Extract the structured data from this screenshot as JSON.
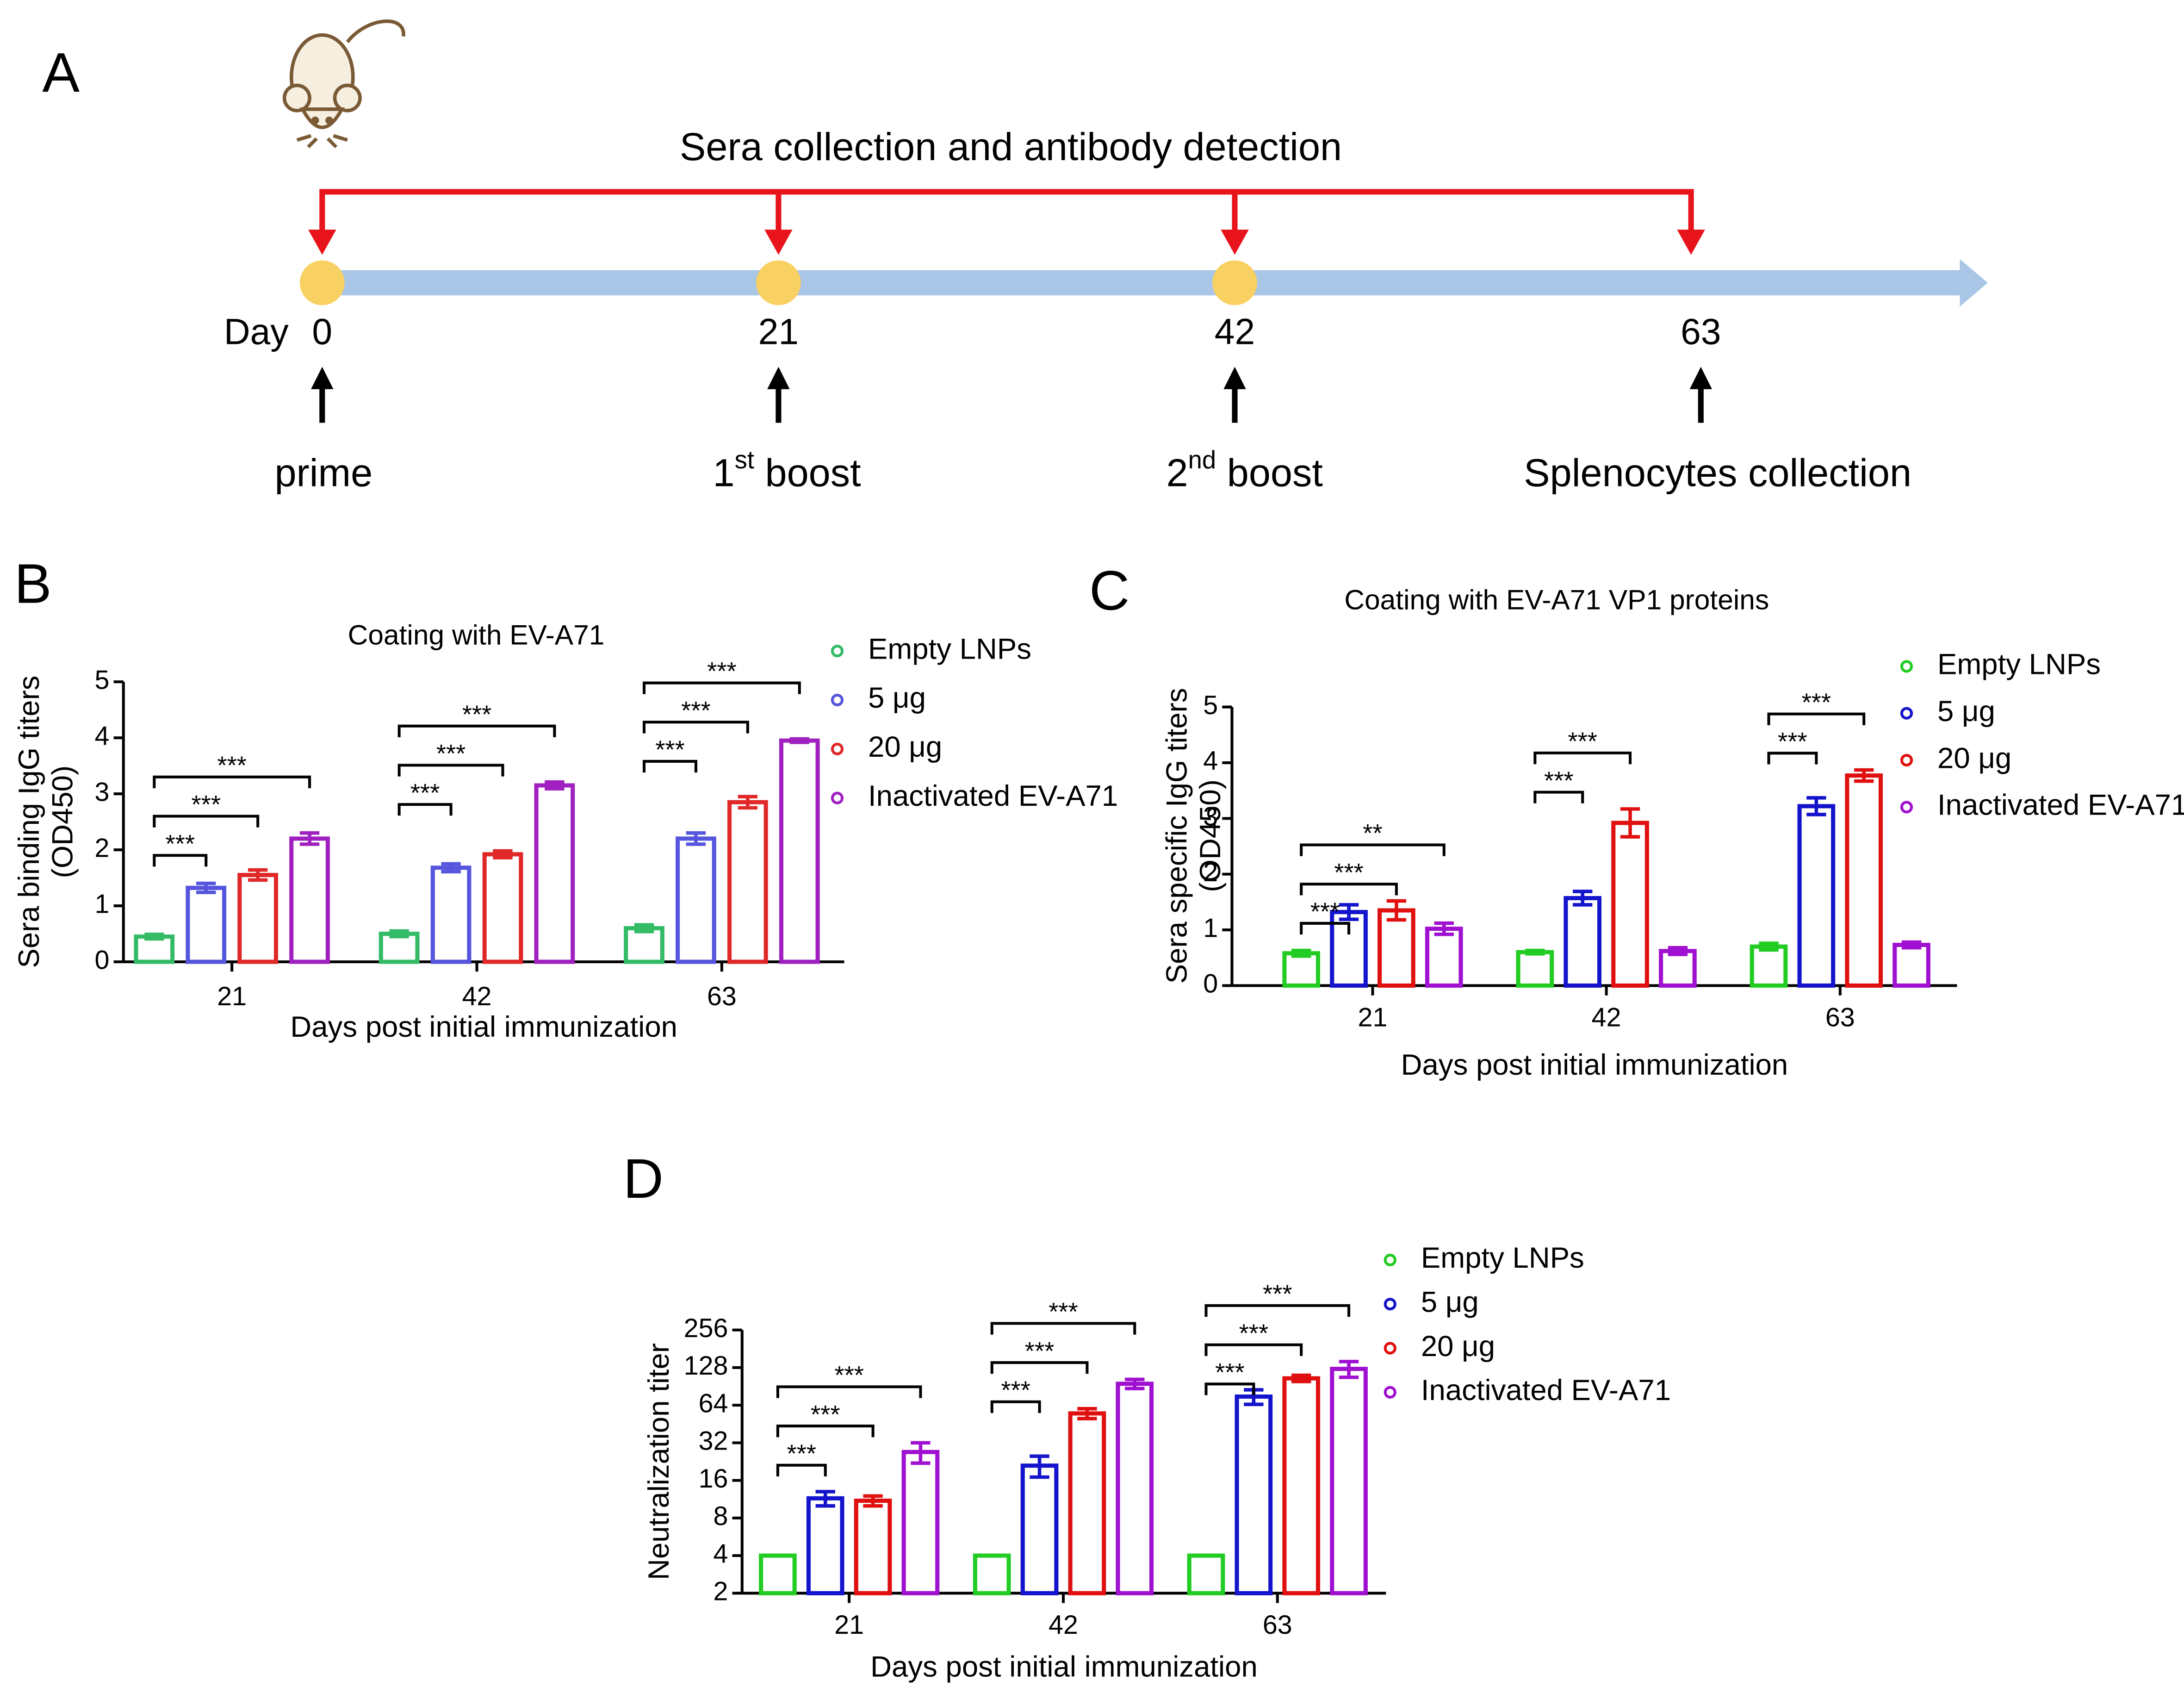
{
  "panel_a": {
    "label": "A",
    "title": "Sera collection and antibody detection",
    "day_label": "Day",
    "days": [
      "0",
      "21",
      "42",
      "63"
    ],
    "events": [
      {
        "main": "prime"
      },
      {
        "main": "1",
        "sup": "st",
        "tail": " boost"
      },
      {
        "main": "2",
        "sup": "nd",
        "tail": " boost"
      },
      {
        "main": "Splenocytes collection"
      }
    ]
  },
  "chart_data": [
    {
      "type": "bar",
      "panel_label": "B",
      "title": "Coating with EV-A71",
      "ylabel": [
        "Sera binding IgG titers",
        "(OD450)"
      ],
      "xlabel": "Days post initial immunization",
      "categories": [
        "21",
        "42",
        "63"
      ],
      "ylim": [
        0,
        5
      ],
      "yticks": [
        0,
        1,
        2,
        3,
        4,
        5
      ],
      "series": [
        {
          "name": "Empty LNPs",
          "color": "#33bb66",
          "values": [
            0.45,
            0.5,
            0.6
          ],
          "errors": [
            0.04,
            0.05,
            0.06
          ]
        },
        {
          "name": "5 μg",
          "color": "#5555dd",
          "values": [
            1.32,
            1.68,
            2.2
          ],
          "errors": [
            0.08,
            0.07,
            0.1
          ],
          "significance": [
            "***",
            "***",
            "***"
          ]
        },
        {
          "name": "20 μg",
          "color": "#e02828",
          "values": [
            1.55,
            1.92,
            2.85
          ],
          "errors": [
            0.09,
            0.06,
            0.1
          ],
          "significance": [
            "***",
            "***",
            "***"
          ]
        },
        {
          "name": "Inactivated EV-A71",
          "color": "#a020c0",
          "values": [
            2.2,
            3.15,
            3.95
          ],
          "errors": [
            0.1,
            0.06,
            0.03
          ],
          "significance": [
            "***",
            "***",
            "***"
          ]
        }
      ]
    },
    {
      "type": "bar",
      "panel_label": "C",
      "title": "Coating with EV-A71 VP1 proteins",
      "ylabel": [
        "Sera specific IgG titers",
        "(OD450)"
      ],
      "xlabel": "Days post initial immunization",
      "categories": [
        "21",
        "42",
        "63"
      ],
      "ylim": [
        0,
        5
      ],
      "yticks": [
        0,
        1,
        2,
        3,
        4,
        5
      ],
      "series": [
        {
          "name": "Empty LNPs",
          "color": "#22cc22",
          "values": [
            0.58,
            0.6,
            0.7
          ],
          "errors": [
            0.05,
            0.03,
            0.06
          ]
        },
        {
          "name": "5 μg",
          "color": "#1414cc",
          "values": [
            1.32,
            1.57,
            3.22
          ],
          "errors": [
            0.13,
            0.12,
            0.15
          ],
          "significance": [
            "***",
            "***",
            "***"
          ]
        },
        {
          "name": "20 μg",
          "color": "#e01010",
          "values": [
            1.35,
            2.92,
            3.77
          ],
          "errors": [
            0.17,
            0.25,
            0.1
          ],
          "significance": [
            "***",
            "***",
            "***"
          ]
        },
        {
          "name": "Inactivated EV-A71",
          "color": "#a010d0",
          "values": [
            1.02,
            0.62,
            0.73
          ],
          "errors": [
            0.1,
            0.06,
            0.05
          ],
          "significance": [
            "**",
            null,
            null
          ]
        }
      ]
    },
    {
      "type": "bar",
      "panel_label": "D",
      "ylabel": [
        "Neutralization titer"
      ],
      "xlabel": "Days post initial immunization",
      "categories": [
        "21",
        "42",
        "63"
      ],
      "log_scale": true,
      "ylim": [
        2,
        256
      ],
      "yticks": [
        2,
        4,
        8,
        16,
        32,
        64,
        128,
        256
      ],
      "series": [
        {
          "name": "Empty LNPs",
          "color": "#22cc22",
          "values": [
            4,
            4,
            4
          ],
          "errors": [
            0,
            0,
            0
          ]
        },
        {
          "name": "5 μg",
          "color": "#1414cc",
          "values": [
            11.5,
            21,
            75
          ],
          "errors": [
            1.5,
            4,
            10
          ],
          "significance": [
            "***",
            "***",
            "***"
          ]
        },
        {
          "name": "20 μg",
          "color": "#e01010",
          "values": [
            11,
            55,
            105
          ],
          "errors": [
            1,
            5,
            6
          ],
          "significance": [
            "***",
            "***",
            "***"
          ]
        },
        {
          "name": "Inactivated EV-A71",
          "color": "#a010d0",
          "values": [
            27,
            95,
            125
          ],
          "errors": [
            5,
            8,
            18
          ],
          "significance": [
            "***",
            "***",
            "***"
          ]
        }
      ]
    }
  ]
}
